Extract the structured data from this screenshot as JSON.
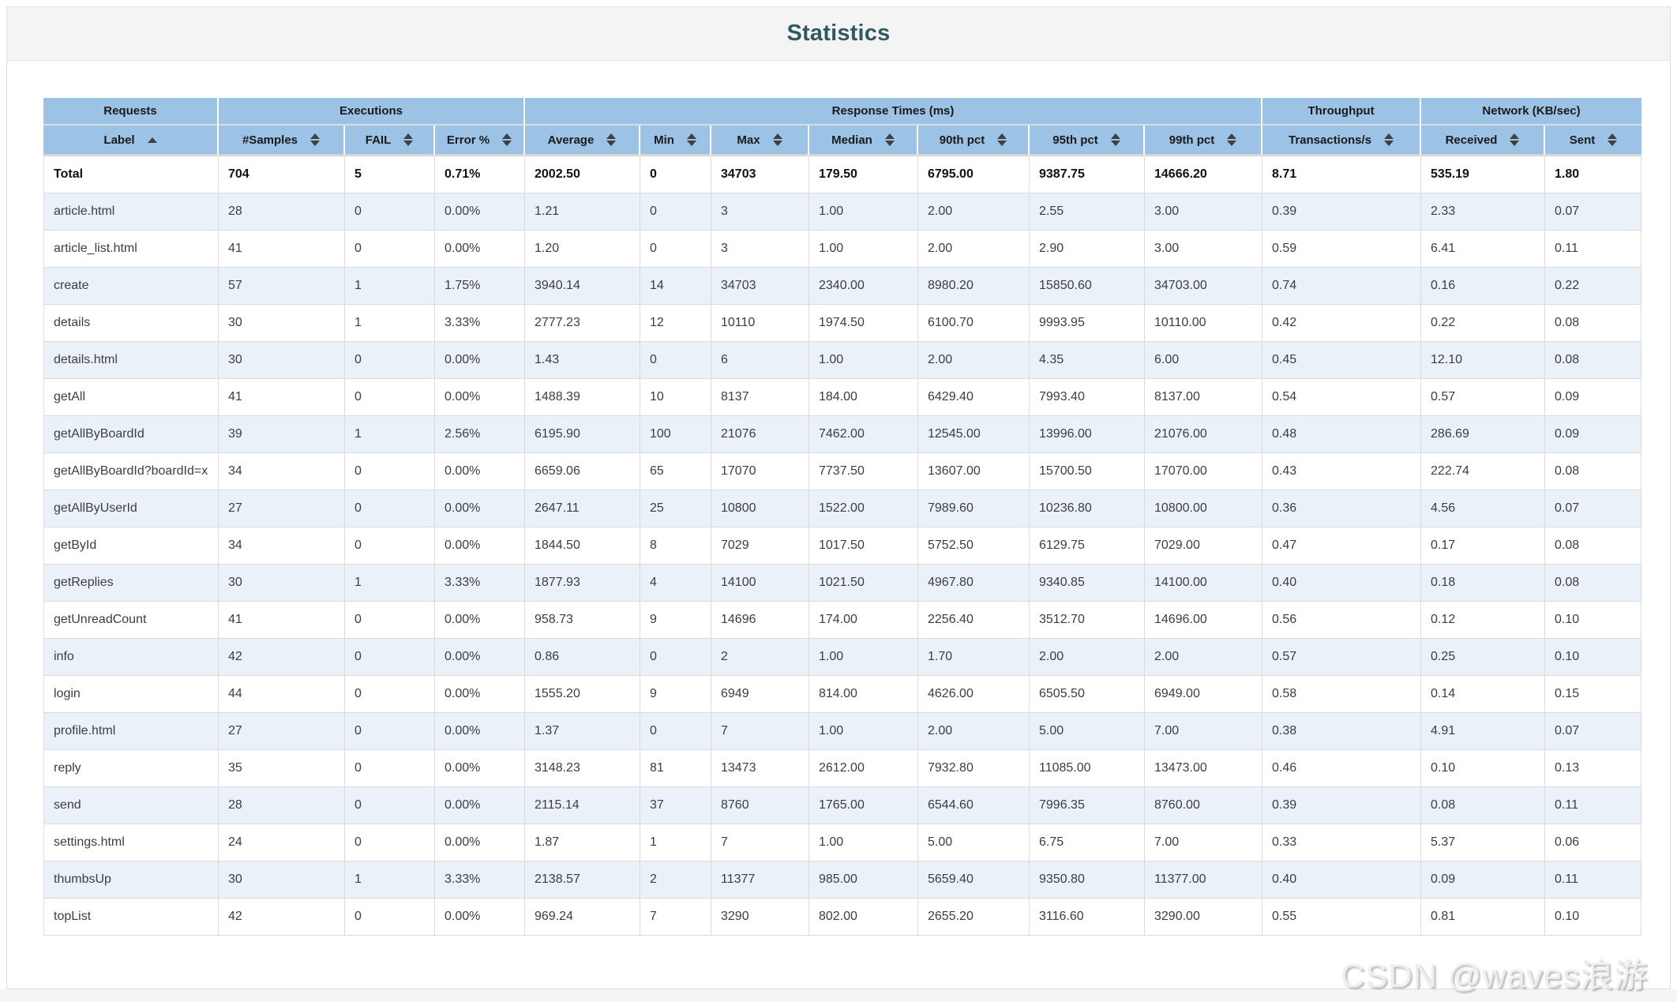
{
  "page": {
    "title": "Statistics",
    "watermark": "CSDN @waves浪游",
    "colors": {
      "header_bg": "#9cc3e6",
      "row_stripe": "#eaf1f8",
      "title_text": "#315a5e",
      "band_bg": "#f4f4f4",
      "border": "#dbdbdb"
    }
  },
  "table": {
    "groups": [
      {
        "label": "Requests",
        "colspan": 1
      },
      {
        "label": "Executions",
        "colspan": 3
      },
      {
        "label": "Response Times (ms)",
        "colspan": 7
      },
      {
        "label": "Throughput",
        "colspan": 1
      },
      {
        "label": "Network (KB/sec)",
        "colspan": 2
      }
    ],
    "columns": [
      {
        "label": "Label",
        "sort": "asc"
      },
      {
        "label": "#Samples",
        "sort": "both"
      },
      {
        "label": "FAIL",
        "sort": "both"
      },
      {
        "label": "Error %",
        "sort": "both"
      },
      {
        "label": "Average",
        "sort": "both"
      },
      {
        "label": "Min",
        "sort": "both"
      },
      {
        "label": "Max",
        "sort": "both"
      },
      {
        "label": "Median",
        "sort": "both"
      },
      {
        "label": "90th pct",
        "sort": "both"
      },
      {
        "label": "95th pct",
        "sort": "both"
      },
      {
        "label": "99th pct",
        "sort": "both"
      },
      {
        "label": "Transactions/s",
        "sort": "both"
      },
      {
        "label": "Received",
        "sort": "both"
      },
      {
        "label": "Sent",
        "sort": "both"
      }
    ],
    "total_row": [
      "Total",
      "704",
      "5",
      "0.71%",
      "2002.50",
      "0",
      "34703",
      "179.50",
      "6795.00",
      "9387.75",
      "14666.20",
      "8.71",
      "535.19",
      "1.80"
    ],
    "rows": [
      [
        "article.html",
        "28",
        "0",
        "0.00%",
        "1.21",
        "0",
        "3",
        "1.00",
        "2.00",
        "2.55",
        "3.00",
        "0.39",
        "2.33",
        "0.07"
      ],
      [
        "article_list.html",
        "41",
        "0",
        "0.00%",
        "1.20",
        "0",
        "3",
        "1.00",
        "2.00",
        "2.90",
        "3.00",
        "0.59",
        "6.41",
        "0.11"
      ],
      [
        "create",
        "57",
        "1",
        "1.75%",
        "3940.14",
        "14",
        "34703",
        "2340.00",
        "8980.20",
        "15850.60",
        "34703.00",
        "0.74",
        "0.16",
        "0.22"
      ],
      [
        "details",
        "30",
        "1",
        "3.33%",
        "2777.23",
        "12",
        "10110",
        "1974.50",
        "6100.70",
        "9993.95",
        "10110.00",
        "0.42",
        "0.22",
        "0.08"
      ],
      [
        "details.html",
        "30",
        "0",
        "0.00%",
        "1.43",
        "0",
        "6",
        "1.00",
        "2.00",
        "4.35",
        "6.00",
        "0.45",
        "12.10",
        "0.08"
      ],
      [
        "getAll",
        "41",
        "0",
        "0.00%",
        "1488.39",
        "10",
        "8137",
        "184.00",
        "6429.40",
        "7993.40",
        "8137.00",
        "0.54",
        "0.57",
        "0.09"
      ],
      [
        "getAllByBoardId",
        "39",
        "1",
        "2.56%",
        "6195.90",
        "100",
        "21076",
        "7462.00",
        "12545.00",
        "13996.00",
        "21076.00",
        "0.48",
        "286.69",
        "0.09"
      ],
      [
        "getAllByBoardId?boardId=x",
        "34",
        "0",
        "0.00%",
        "6659.06",
        "65",
        "17070",
        "7737.50",
        "13607.00",
        "15700.50",
        "17070.00",
        "0.43",
        "222.74",
        "0.08"
      ],
      [
        "getAllByUserId",
        "27",
        "0",
        "0.00%",
        "2647.11",
        "25",
        "10800",
        "1522.00",
        "7989.60",
        "10236.80",
        "10800.00",
        "0.36",
        "4.56",
        "0.07"
      ],
      [
        "getById",
        "34",
        "0",
        "0.00%",
        "1844.50",
        "8",
        "7029",
        "1017.50",
        "5752.50",
        "6129.75",
        "7029.00",
        "0.47",
        "0.17",
        "0.08"
      ],
      [
        "getReplies",
        "30",
        "1",
        "3.33%",
        "1877.93",
        "4",
        "14100",
        "1021.50",
        "4967.80",
        "9340.85",
        "14100.00",
        "0.40",
        "0.18",
        "0.08"
      ],
      [
        "getUnreadCount",
        "41",
        "0",
        "0.00%",
        "958.73",
        "9",
        "14696",
        "174.00",
        "2256.40",
        "3512.70",
        "14696.00",
        "0.56",
        "0.12",
        "0.10"
      ],
      [
        "info",
        "42",
        "0",
        "0.00%",
        "0.86",
        "0",
        "2",
        "1.00",
        "1.70",
        "2.00",
        "2.00",
        "0.57",
        "0.25",
        "0.10"
      ],
      [
        "login",
        "44",
        "0",
        "0.00%",
        "1555.20",
        "9",
        "6949",
        "814.00",
        "4626.00",
        "6505.50",
        "6949.00",
        "0.58",
        "0.14",
        "0.15"
      ],
      [
        "profile.html",
        "27",
        "0",
        "0.00%",
        "1.37",
        "0",
        "7",
        "1.00",
        "2.00",
        "5.00",
        "7.00",
        "0.38",
        "4.91",
        "0.07"
      ],
      [
        "reply",
        "35",
        "0",
        "0.00%",
        "3148.23",
        "81",
        "13473",
        "2612.00",
        "7932.80",
        "11085.00",
        "13473.00",
        "0.46",
        "0.10",
        "0.13"
      ],
      [
        "send",
        "28",
        "0",
        "0.00%",
        "2115.14",
        "37",
        "8760",
        "1765.00",
        "6544.60",
        "7996.35",
        "8760.00",
        "0.39",
        "0.08",
        "0.11"
      ],
      [
        "settings.html",
        "24",
        "0",
        "0.00%",
        "1.87",
        "1",
        "7",
        "1.00",
        "5.00",
        "6.75",
        "7.00",
        "0.33",
        "5.37",
        "0.06"
      ],
      [
        "thumbsUp",
        "30",
        "1",
        "3.33%",
        "2138.57",
        "2",
        "11377",
        "985.00",
        "5659.40",
        "9350.80",
        "11377.00",
        "0.40",
        "0.09",
        "0.11"
      ],
      [
        "topList",
        "42",
        "0",
        "0.00%",
        "969.24",
        "7",
        "3290",
        "802.00",
        "2655.20",
        "3116.60",
        "3290.00",
        "0.55",
        "0.81",
        "0.10"
      ]
    ]
  }
}
